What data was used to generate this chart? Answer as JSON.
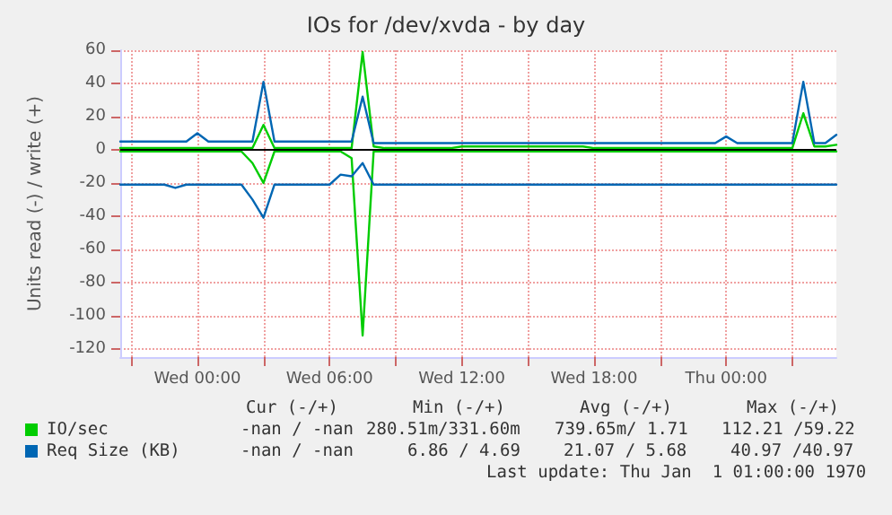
{
  "chart_data": {
    "type": "line",
    "title": "IOs for /dev/xvda - by day",
    "ylabel": "Units read (-) / write (+)",
    "categories": [
      null,
      null,
      null,
      null,
      null,
      null,
      null,
      "Wed 00:00",
      null,
      null,
      null,
      null,
      null,
      null,
      null,
      null,
      null,
      null,
      null,
      "Wed 06:00",
      null,
      null,
      null,
      null,
      null,
      null,
      null,
      null,
      null,
      null,
      null,
      "Wed 12:00",
      null,
      null,
      null,
      null,
      null,
      null,
      null,
      null,
      null,
      null,
      null,
      "Wed 18:00",
      null,
      null,
      null,
      null,
      null,
      null,
      null,
      null,
      null,
      null,
      null,
      "Thu 00:00",
      null,
      null,
      null,
      null,
      null,
      null,
      null,
      null,
      null,
      null
    ],
    "ylim": [
      -125,
      60
    ],
    "yticks": [
      -120,
      -100,
      -80,
      -60,
      -40,
      -20,
      0,
      20,
      40,
      60
    ],
    "grid": true,
    "legend": "bottom",
    "marker": "none",
    "line_style": "solid",
    "ref_lines": [
      {
        "axis": "y",
        "value": 0,
        "label": null,
        "color": "#000000"
      }
    ],
    "series": [
      {
        "color": "#00cc00",
        "values": [
          -1,
          -1,
          -1,
          -1,
          -1,
          -1,
          -1,
          -1,
          -1,
          -1,
          -1,
          -1,
          -8,
          -20,
          -1,
          -1,
          -1,
          -1,
          -1,
          -1,
          -1,
          -5,
          -112,
          -1,
          -1,
          -1,
          -1,
          -1,
          -1,
          -1,
          -1,
          -1,
          -1,
          -1,
          -1,
          -1,
          -1,
          -1,
          -1,
          -1,
          -1,
          -1,
          -1,
          -1,
          -1,
          -1,
          -1,
          -1,
          -1,
          -1,
          -1,
          -1,
          -1,
          -1,
          -1,
          -1,
          -1,
          -1,
          -1,
          -1,
          -1,
          -1,
          -1,
          -1,
          -1,
          -1
        ]
      },
      {
        "name": "IO/sec",
        "color": "#00cc00",
        "values": [
          1,
          1,
          1,
          1,
          1,
          1,
          1,
          1,
          1,
          1,
          1,
          1,
          1,
          15,
          1,
          1,
          1,
          1,
          1,
          1,
          1,
          1,
          59,
          2,
          1,
          1,
          1,
          1,
          1,
          1,
          1,
          2,
          2,
          2,
          2,
          2,
          2,
          2,
          2,
          2,
          2,
          2,
          2,
          1,
          1,
          1,
          1,
          1,
          1,
          1,
          1,
          1,
          1,
          1,
          1,
          1,
          1,
          1,
          1,
          1,
          1,
          1,
          22,
          2,
          2,
          3
        ]
      },
      {
        "color": "#0066b3",
        "values": [
          -21,
          -21,
          -21,
          -21,
          -21,
          -23,
          -21,
          -21,
          -21,
          -21,
          -21,
          -21,
          -30,
          -41,
          -21,
          -21,
          -21,
          -21,
          -21,
          -21,
          -15,
          -16,
          -8,
          -21,
          -21,
          -21,
          -21,
          -21,
          -21,
          -21,
          -21,
          -21,
          -21,
          -21,
          -21,
          -21,
          -21,
          -21,
          -21,
          -21,
          -21,
          -21,
          -21,
          -21,
          -21,
          -21,
          -21,
          -21,
          -21,
          -21,
          -21,
          -21,
          -21,
          -21,
          -21,
          -21,
          -21,
          -21,
          -21,
          -21,
          -21,
          -21,
          -21,
          -21,
          -21,
          -21
        ]
      },
      {
        "name": "Req Size (KB)",
        "color": "#0066b3",
        "values": [
          5,
          5,
          5,
          5,
          5,
          5,
          5,
          10,
          5,
          5,
          5,
          5,
          5,
          41,
          5,
          5,
          5,
          5,
          5,
          5,
          5,
          5,
          32,
          4,
          4,
          4,
          4,
          4,
          4,
          4,
          4,
          4,
          4,
          4,
          4,
          4,
          4,
          4,
          4,
          4,
          4,
          4,
          4,
          4,
          4,
          4,
          4,
          4,
          4,
          4,
          4,
          4,
          4,
          4,
          4,
          8,
          4,
          4,
          4,
          4,
          4,
          4,
          41,
          4,
          4,
          9
        ]
      }
    ],
    "annotations": [
      "Cur (-/+)",
      "Min (-/+)",
      "Avg (-/+)",
      "Max (-/+)",
      "-nan / -nan",
      "280.51m/331.60m",
      "739.65m/ 1.71",
      "112.21 /59.22",
      "-nan / -nan",
      "6.86 / 4.69",
      "21.07 / 5.68",
      "40.97 /40.97",
      "Last update: Thu Jan  1 01:00:00 1970"
    ]
  }
}
